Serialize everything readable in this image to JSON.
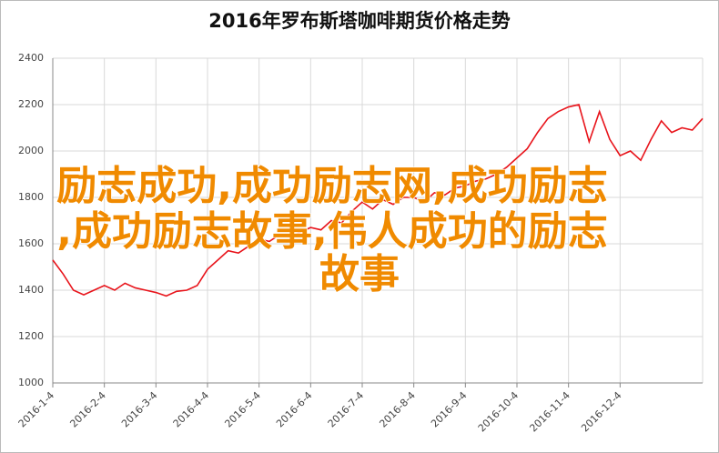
{
  "chart_data": {
    "type": "line",
    "title": "2016年罗布斯塔咖啡期货价格走势",
    "categories": [
      "2016-1-4",
      null,
      null,
      null,
      null,
      "2016-2-4",
      null,
      null,
      null,
      null,
      "2016-3-4",
      null,
      null,
      null,
      null,
      "2016-4-4",
      null,
      null,
      null,
      null,
      "2016-5-4",
      null,
      null,
      null,
      null,
      "2016-6-4",
      null,
      null,
      null,
      null,
      "2016-7-4",
      null,
      null,
      null,
      null,
      "2016-8-4",
      null,
      null,
      null,
      null,
      "2016-9-4",
      null,
      null,
      null,
      null,
      "2016-10-4",
      null,
      null,
      null,
      null,
      "2016-11-4",
      null,
      null,
      null,
      null,
      "2016-12-4",
      null,
      null,
      null,
      null,
      null,
      null,
      null,
      null
    ],
    "values": [
      1530,
      1470,
      1400,
      1380,
      1400,
      1420,
      1400,
      1430,
      1410,
      1400,
      1390,
      1375,
      1395,
      1400,
      1420,
      1490,
      1530,
      1570,
      1560,
      1590,
      1620,
      1610,
      1640,
      1630,
      1650,
      1670,
      1660,
      1700,
      1690,
      1740,
      1780,
      1750,
      1790,
      1770,
      1800,
      1800,
      1780,
      1820,
      1810,
      1840,
      1850,
      1870,
      1880,
      1900,
      1930,
      1970,
      2010,
      2080,
      2140,
      2170,
      2190,
      2200,
      2040,
      2170,
      2050,
      1980,
      2000,
      1960,
      2050,
      2130,
      2080,
      2100,
      2090,
      2140
    ],
    "color": "#e8141b",
    "ylim": [
      1000,
      2400
    ],
    "yticks": [
      1000,
      1200,
      1400,
      1600,
      1800,
      2000,
      2200,
      2400
    ],
    "grid": true,
    "overlay_text": [
      "励志成功,成功励志网,成功励志",
      ",成功励志故事,伟人成功的励志",
      "故事"
    ]
  }
}
